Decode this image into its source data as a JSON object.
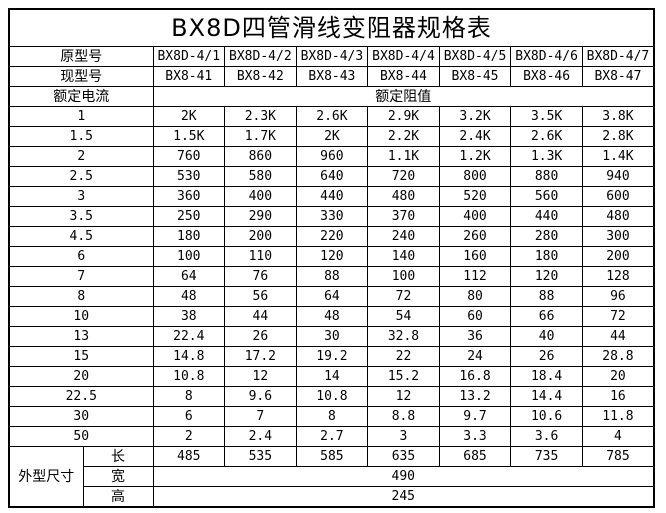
{
  "title": "BX8D四管滑线变阻器规格表",
  "labels": {
    "original_model": "原型号",
    "current_model": "现型号",
    "rated_current": "额定电流",
    "rated_resistance": "额定阻值",
    "overall_dimensions": "外型尺寸",
    "length": "长",
    "width": "宽",
    "height": "高"
  },
  "original_models": [
    "BX8D-4/1",
    "BX8D-4/2",
    "BX8D-4/3",
    "BX8D-4/4",
    "BX8D-4/5",
    "BX8D-4/6",
    "BX8D-4/7"
  ],
  "current_models": [
    "BX8-41",
    "BX8-42",
    "BX8-43",
    "BX8-44",
    "BX8-45",
    "BX8-46",
    "BX8-47"
  ],
  "resistance_rows": [
    {
      "current": "1",
      "values": [
        "2K",
        "2.3K",
        "2.6K",
        "2.9K",
        "3.2K",
        "3.5K",
        "3.8K"
      ]
    },
    {
      "current": "1.5",
      "values": [
        "1.5K",
        "1.7K",
        "2K",
        "2.2K",
        "2.4K",
        "2.6K",
        "2.8K"
      ]
    },
    {
      "current": "2",
      "values": [
        "760",
        "860",
        "960",
        "1.1K",
        "1.2K",
        "1.3K",
        "1.4K"
      ]
    },
    {
      "current": "2.5",
      "values": [
        "530",
        "580",
        "640",
        "720",
        "800",
        "880",
        "940"
      ]
    },
    {
      "current": "3",
      "values": [
        "360",
        "400",
        "440",
        "480",
        "520",
        "560",
        "600"
      ]
    },
    {
      "current": "3.5",
      "values": [
        "250",
        "290",
        "330",
        "370",
        "400",
        "440",
        "480"
      ]
    },
    {
      "current": "4.5",
      "values": [
        "180",
        "200",
        "220",
        "240",
        "260",
        "280",
        "300"
      ]
    },
    {
      "current": "6",
      "values": [
        "100",
        "110",
        "120",
        "140",
        "160",
        "180",
        "200"
      ]
    },
    {
      "current": "7",
      "values": [
        "64",
        "76",
        "88",
        "100",
        "112",
        "120",
        "128"
      ]
    },
    {
      "current": "8",
      "values": [
        "48",
        "56",
        "64",
        "72",
        "80",
        "88",
        "96"
      ]
    },
    {
      "current": "10",
      "values": [
        "38",
        "44",
        "48",
        "54",
        "60",
        "66",
        "72"
      ]
    },
    {
      "current": "13",
      "values": [
        "22.4",
        "26",
        "30",
        "32.8",
        "36",
        "40",
        "44"
      ]
    },
    {
      "current": "15",
      "values": [
        "14.8",
        "17.2",
        "19.2",
        "22",
        "24",
        "26",
        "28.8"
      ]
    },
    {
      "current": "20",
      "values": [
        "10.8",
        "12",
        "14",
        "15.2",
        "16.8",
        "18.4",
        "20"
      ]
    },
    {
      "current": "22.5",
      "values": [
        "8",
        "9.6",
        "10.8",
        "12",
        "13.2",
        "14.4",
        "16"
      ]
    },
    {
      "current": "30",
      "values": [
        "6",
        "7",
        "8",
        "8.8",
        "9.7",
        "10.6",
        "11.8"
      ]
    },
    {
      "current": "50",
      "values": [
        "2",
        "2.4",
        "2.7",
        "3",
        "3.3",
        "3.6",
        "4"
      ]
    }
  ],
  "dimensions": {
    "length_values": [
      "485",
      "535",
      "585",
      "635",
      "685",
      "735",
      "785"
    ],
    "width_value": "490",
    "height_value": "245"
  }
}
